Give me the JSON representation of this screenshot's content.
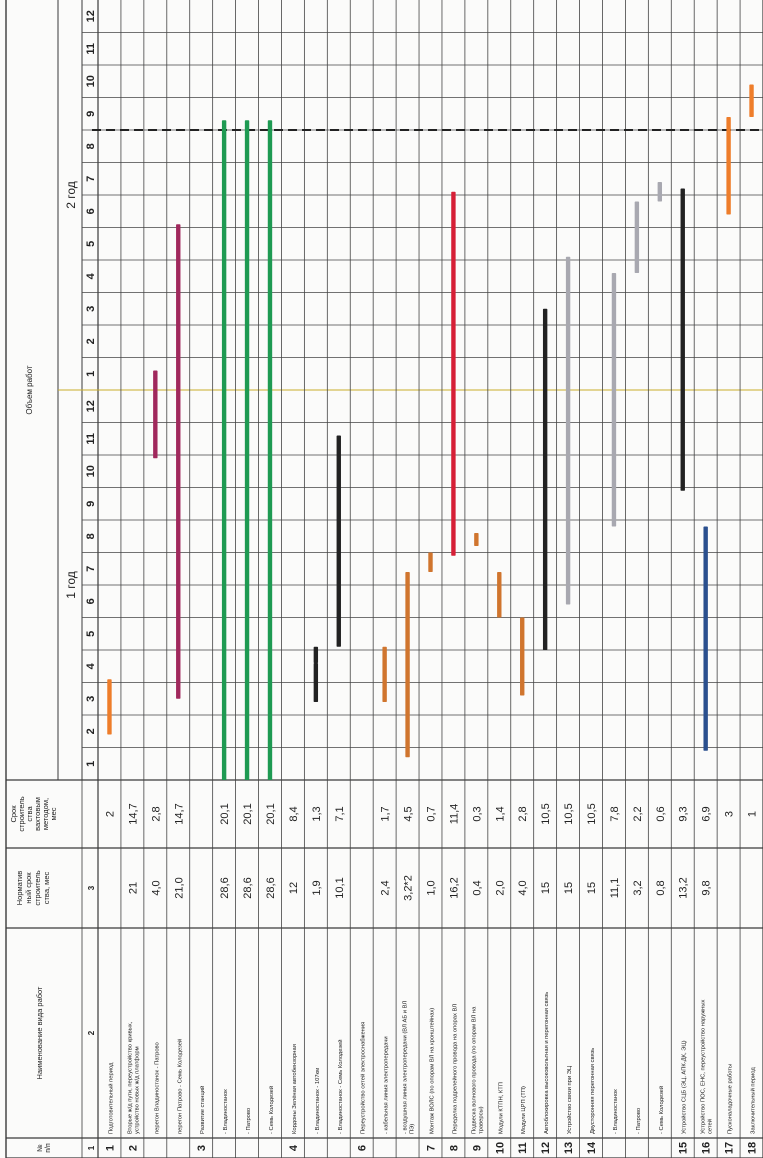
{
  "table": {
    "header": {
      "num": "№\nп/п",
      "name": "Наименование вида работ",
      "norm": "Норматив\nный срок\nстроитель\nства, мес",
      "term": "Срок\nстроитель\nства\nвахтовым\nметодом,\nмес",
      "volume": "Объем работ",
      "year1": "1 год",
      "year2": "2 год",
      "col_index": [
        "1",
        "2",
        "3"
      ]
    },
    "months": [
      "1",
      "2",
      "3",
      "4",
      "5",
      "6",
      "7",
      "8",
      "9",
      "10",
      "11",
      "12",
      "1",
      "2",
      "3",
      "4",
      "5",
      "6",
      "7",
      "8",
      "9",
      "10",
      "11",
      "12"
    ],
    "rows": [
      {
        "num": "1",
        "name": "Подготовительный период",
        "norm": "",
        "term": "2"
      },
      {
        "num": "2",
        "name": "Вторые ж/д пути, переустройство кривых, устройство новых ж/д платформ",
        "norm": "21",
        "term": "14,7"
      },
      {
        "num": "",
        "name": "перегон Владиностанок - Патрово",
        "norm": "4,0",
        "term": "2,8"
      },
      {
        "num": "",
        "name": "перегон Патрово - Семь Колодезей",
        "norm": "21,0",
        "term": "14,7"
      },
      {
        "num": "3",
        "name": "Развитие станций",
        "norm": "",
        "term": ""
      },
      {
        "num": "",
        "name": "- Владиностанок",
        "norm": "28,6",
        "term": "20,1"
      },
      {
        "num": "",
        "name": "- Патрово",
        "norm": "28,6",
        "term": "20,1"
      },
      {
        "num": "",
        "name": "- Семь Колодезей",
        "norm": "28,6",
        "term": "20,1"
      },
      {
        "num": "4",
        "name": "Кордоны Зелёная автобензорная",
        "norm": "12",
        "term": "8,4"
      },
      {
        "num": "",
        "name": "- Владиностанок - 107км",
        "norm": "1,9",
        "term": "1,3"
      },
      {
        "num": "",
        "name": "- Владиностанок - Семь Колодезей",
        "norm": "10,1",
        "term": "7,1"
      },
      {
        "num": "6",
        "name": "Переустройство сетей электроснабжения",
        "norm": "",
        "term": ""
      },
      {
        "num": "",
        "name": "- кабельная линия электропередачи",
        "norm": "2,4",
        "term": "1,7"
      },
      {
        "num": "",
        "name": "- воздушная линия электропередачи (ВЛ АБ и ВЛ ПЭ)",
        "norm": "3,2*2",
        "term": "4,5"
      },
      {
        "num": "7",
        "name": "Монтаж ВОЛС (по опорам ВЛ на кронштейнах)",
        "norm": "1,0",
        "term": "0,7"
      },
      {
        "num": "8",
        "name": "Переделка подрелейного провода на опорах ВЛ",
        "norm": "16,2",
        "term": "11,4"
      },
      {
        "num": "9",
        "name": "Подвеска волнового провода (по опорам ВЛ на траверсы)",
        "norm": "0,4",
        "term": "0,3"
      },
      {
        "num": "10",
        "name": "Модули КТПН, КТП",
        "norm": "2,0",
        "term": "1,4"
      },
      {
        "num": "11",
        "name": "Модули ЦРП (ТП)",
        "norm": "4,0",
        "term": "2,8"
      },
      {
        "num": "12",
        "name": "Автоблокировка высоковольтная и перегонная связь",
        "norm": "15",
        "term": "10,5"
      },
      {
        "num": "13",
        "name": "Устройство связи при ЭЦ",
        "norm": "15",
        "term": "10,5"
      },
      {
        "num": "14",
        "name": "Двусторонняя перегонная связь",
        "norm": "15",
        "term": "10,5"
      },
      {
        "num": "",
        "name": "- Владиностанок",
        "norm": "11,1",
        "term": "7,8"
      },
      {
        "num": "",
        "name": "- Патрово",
        "norm": "3,2",
        "term": "2,2"
      },
      {
        "num": "",
        "name": "- Семь Колодезей",
        "norm": "0,8",
        "term": "0,6"
      },
      {
        "num": "15",
        "name": "Устройство СЦБ (ЭЦ, АПК-ДК, ЭЦ)",
        "norm": "13,2",
        "term": "9,3"
      },
      {
        "num": "16",
        "name": "Устройство ПОС, ЕНС, переустройство наружных сетей",
        "norm": "9,8",
        "term": "6,9"
      },
      {
        "num": "17",
        "name": "Пусконаладочные работы",
        "norm": "",
        "term": "3"
      },
      {
        "num": "18",
        "name": "Заключительный период",
        "norm": "",
        "term": "1"
      }
    ]
  },
  "gantt": {
    "bars": [
      {
        "row": 0,
        "start": 1.4,
        "end": 3.1,
        "color": "#ee7d2a"
      },
      {
        "row": 2,
        "start": 9.9,
        "end": 12.6,
        "color": "#a0285c"
      },
      {
        "row": 3,
        "start": 2.5,
        "end": 17.1,
        "color": "#a0285c"
      },
      {
        "row": 5,
        "start": 0,
        "end": 20.3,
        "color": "#1e9a52"
      },
      {
        "row": 6,
        "start": 0,
        "end": 20.3,
        "color": "#1e9a52"
      },
      {
        "row": 7,
        "start": 0,
        "end": 20.3,
        "color": "#1e9a52"
      },
      {
        "row": 9,
        "start": 2.4,
        "end": 3.6,
        "color": "#222222"
      },
      {
        "row": 9,
        "start": 3.6,
        "end": 4.1,
        "color": "#222222"
      },
      {
        "row": 10,
        "start": 4.1,
        "end": 10.6,
        "color": "#222222"
      },
      {
        "row": 12,
        "start": 2.4,
        "end": 4.1,
        "color": "#d0752e"
      },
      {
        "row": 13,
        "start": 0.7,
        "end": 6.4,
        "color": "#d0752e"
      },
      {
        "row": 14,
        "start": 6.4,
        "end": 7.0,
        "color": "#d0752e"
      },
      {
        "row": 15,
        "start": 6.9,
        "end": 18.1,
        "color": "#d61f36"
      },
      {
        "row": 16,
        "start": 7.2,
        "end": 7.6,
        "color": "#d0752e"
      },
      {
        "row": 17,
        "start": 5.0,
        "end": 6.4,
        "color": "#d0752e"
      },
      {
        "row": 18,
        "start": 2.6,
        "end": 5.0,
        "color": "#d0752e"
      },
      {
        "row": 19,
        "start": 4.0,
        "end": 14.5,
        "color": "#222222"
      },
      {
        "row": 20,
        "start": 5.4,
        "end": 16.1,
        "color": "#a8a8b0"
      },
      {
        "row": 22,
        "start": 7.8,
        "end": 15.6,
        "color": "#a8a8b0"
      },
      {
        "row": 23,
        "start": 15.6,
        "end": 17.8,
        "color": "#a8a8b0"
      },
      {
        "row": 24,
        "start": 17.8,
        "end": 18.4,
        "color": "#a8a8b0"
      },
      {
        "row": 25,
        "start": 8.9,
        "end": 18.2,
        "color": "#222222"
      },
      {
        "row": 26,
        "start": 0.9,
        "end": 7.8,
        "color": "#2a4f8e"
      },
      {
        "row": 27,
        "start": 17.4,
        "end": 20.4,
        "color": "#ee7d2a"
      },
      {
        "row": 28,
        "start": 20.4,
        "end": 21.4,
        "color": "#ee7d2a"
      }
    ],
    "dashed_at_month": 20.0
  }
}
